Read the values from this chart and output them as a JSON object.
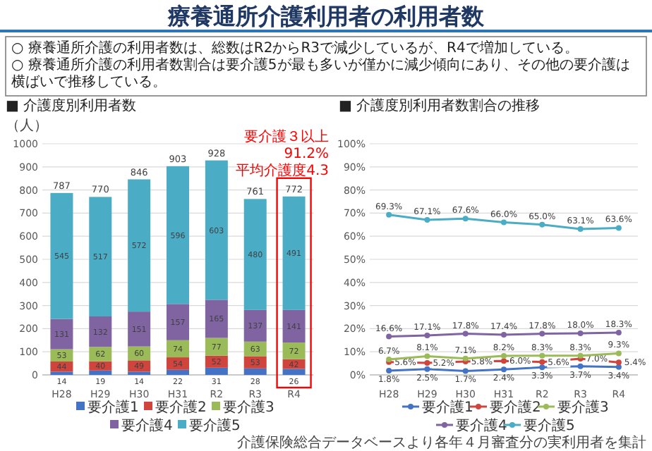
{
  "chart_data": [
    {
      "type": "other",
      "title": "療養通所介護利用者の利用者数",
      "annotations": [
        "○ 療養通所介護の利用者数は、総数はR2からR3で減少しているが、R4で増加している。",
        "○ 療養通所介護の利用者数割合は要介護5が最も多いが僅かに減少傾向にあり、その他の要介護は横ばいで推移している。"
      ]
    },
    {
      "type": "bar",
      "title": "■ 介護度別利用者数",
      "ylabel": "（人）",
      "categories": [
        "H28",
        "H29",
        "H30",
        "H31",
        "R2",
        "R3",
        "R4"
      ],
      "stacked": true,
      "data_labels": true,
      "grid": "y",
      "legend": "bottom",
      "ylim": [
        0,
        1000
      ],
      "yticks": [
        0,
        100,
        200,
        300,
        400,
        500,
        600,
        700,
        800,
        900,
        1000
      ],
      "series": [
        {
          "name": "要介護1",
          "color": "#4472c4",
          "values": [
            14,
            19,
            14,
            22,
            31,
            28,
            26
          ]
        },
        {
          "name": "要介護2",
          "color": "#d0443e",
          "values": [
            44,
            40,
            49,
            54,
            52,
            53,
            42
          ]
        },
        {
          "name": "要介護3",
          "color": "#9bbb59",
          "values": [
            53,
            62,
            60,
            74,
            77,
            63,
            72
          ]
        },
        {
          "name": "要介護4",
          "color": "#8064a2",
          "values": [
            131,
            132,
            151,
            157,
            165,
            137,
            141
          ]
        },
        {
          "name": "要介護5",
          "color": "#4bacc6",
          "values": [
            545,
            517,
            572,
            596,
            603,
            480,
            491
          ]
        }
      ],
      "totals": [
        "787",
        "770",
        "846",
        "903",
        "928",
        "761",
        "772"
      ],
      "annotations": [
        "要介護３以上",
        "91.2%",
        "平均介護度4.3"
      ]
    },
    {
      "type": "line",
      "title": "■ 介護度別利用者数割合の推移",
      "categories": [
        "H28",
        "H29",
        "H30",
        "H31",
        "R2",
        "R3",
        "R4"
      ],
      "marker": "circle",
      "grid": "y",
      "legend": "bottom",
      "ylim": [
        0,
        100
      ],
      "yticks": [
        {
          "value": 0,
          "label": "0%"
        },
        {
          "value": 10,
          "label": "10%"
        },
        {
          "value": 20,
          "label": "20%"
        },
        {
          "value": 30,
          "label": "30%"
        },
        {
          "value": 40,
          "label": "40%"
        },
        {
          "value": 50,
          "label": "50%"
        },
        {
          "value": 60,
          "label": "60%"
        },
        {
          "value": 70,
          "label": "70%"
        },
        {
          "value": 80,
          "label": "80%"
        },
        {
          "value": 90,
          "label": "90%"
        },
        {
          "value": 100,
          "label": "100%"
        }
      ],
      "series": [
        {
          "name": "要介護1",
          "color": "#4472c4",
          "values": [
            1.8,
            2.5,
            1.7,
            2.4,
            3.3,
            3.7,
            3.4
          ],
          "value_labels": [
            "1.8%",
            "2.5%",
            "1.7%",
            "2.4%",
            "3.3%",
            "3.7%",
            "3.4%"
          ]
        },
        {
          "name": "要介護2",
          "color": "#d0443e",
          "values": [
            5.6,
            5.2,
            5.8,
            6.0,
            5.6,
            7.0,
            5.4
          ],
          "value_labels": [
            "5.6%",
            "5.2%",
            "5.8%",
            "6.0%",
            "5.6%",
            "7.0%",
            "5.4%"
          ]
        },
        {
          "name": "要介護3",
          "color": "#9bbb59",
          "values": [
            6.7,
            8.1,
            7.1,
            8.2,
            8.3,
            8.3,
            9.3
          ],
          "value_labels": [
            "6.7%",
            "8.1%",
            "7.1%",
            "8.2%",
            "8.3%",
            "8.3%",
            "9.3%"
          ]
        },
        {
          "name": "要介護4",
          "color": "#8064a2",
          "values": [
            16.6,
            17.1,
            17.8,
            17.4,
            17.8,
            18.0,
            18.3
          ],
          "value_labels": [
            "16.6%",
            "17.1%",
            "17.8%",
            "17.4%",
            "17.8%",
            "18.0%",
            "18.3%"
          ]
        },
        {
          "name": "要介護5",
          "color": "#4bacc6",
          "values": [
            69.3,
            67.1,
            67.6,
            66.0,
            65.0,
            63.1,
            63.6
          ],
          "value_labels": [
            "69.3%",
            "67.1%",
            "67.6%",
            "66.0%",
            "65.0%",
            "63.1%",
            "63.6%"
          ]
        }
      ],
      "annotations": [
        "介護保険総合データベースより各年４月審査分の実利用者を集計"
      ]
    }
  ]
}
